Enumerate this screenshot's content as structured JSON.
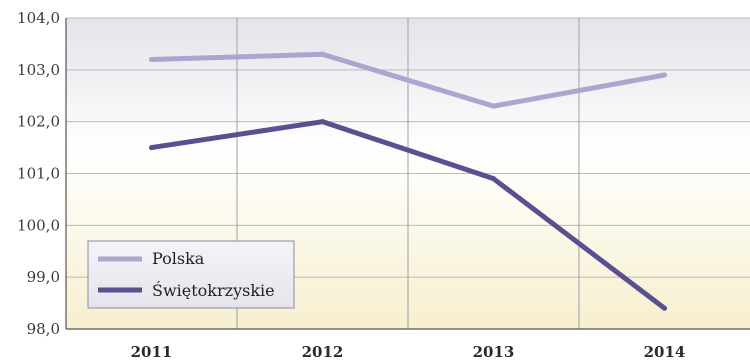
{
  "chart_data": {
    "type": "line",
    "x": [
      "2011",
      "2012",
      "2013",
      "2014"
    ],
    "series": [
      {
        "name": "Polska",
        "values": [
          103.2,
          103.3,
          102.3,
          102.9
        ],
        "color": "#a9a7cf"
      },
      {
        "name": "Świętokrzyskie",
        "values": [
          101.5,
          102.0,
          100.9,
          98.4
        ],
        "color": "#5a4f8f"
      }
    ],
    "ylim": [
      98.0,
      104.0
    ],
    "yticks": [
      "104,0",
      "103,0",
      "102,0",
      "101,0",
      "100,0",
      "99,0",
      "98,0"
    ],
    "ytick_values": [
      104,
      103,
      102,
      101,
      100,
      99,
      98
    ],
    "grid": true,
    "legend": "bottom-left",
    "background_gradient": [
      "#e3e3e9",
      "#ffffff",
      "#f7efcf"
    ]
  }
}
